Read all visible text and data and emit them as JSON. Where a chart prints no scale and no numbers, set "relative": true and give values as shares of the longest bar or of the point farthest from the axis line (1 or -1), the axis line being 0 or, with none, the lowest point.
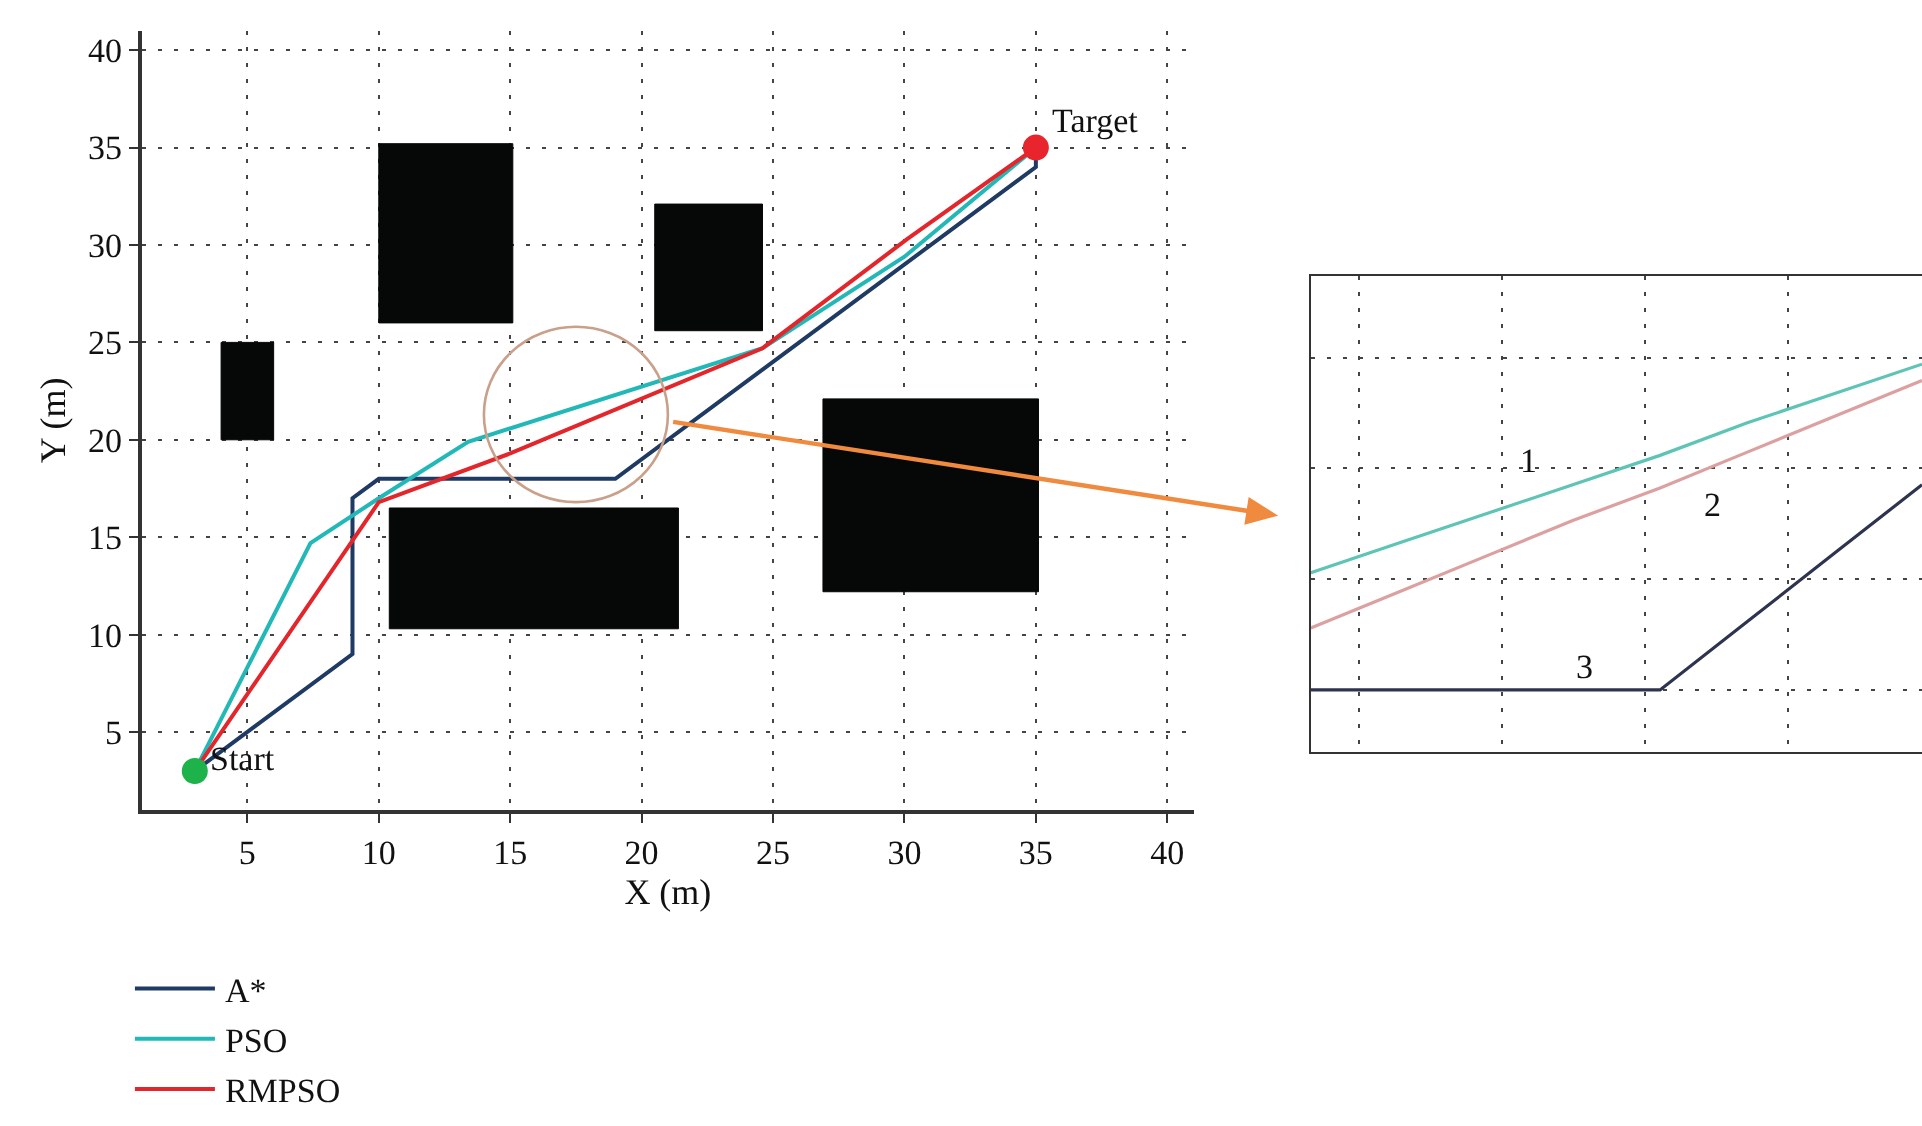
{
  "chart_data": [
    {
      "type": "line",
      "xlabel": "X (m)",
      "ylabel": "Y (m)",
      "xlim": [
        1,
        41
      ],
      "ylim": [
        1,
        41
      ],
      "xticks": [
        5,
        10,
        15,
        20,
        25,
        30,
        35,
        40
      ],
      "yticks": [
        5,
        10,
        15,
        20,
        25,
        30,
        35,
        40
      ],
      "grid": true,
      "legend": "bottom left",
      "line_style": "solid",
      "marker": "none",
      "series": [
        {
          "type": "area",
          "color": "#050807",
          "x": [
            4,
            6,
            6,
            4,
            4
          ],
          "values": [
            20,
            20,
            25,
            25,
            20
          ]
        },
        {
          "type": "area",
          "color": "#050807",
          "x": [
            10,
            15.1,
            15.1,
            10,
            10
          ],
          "values": [
            26,
            26,
            35.2,
            35.2,
            26
          ]
        },
        {
          "type": "area",
          "color": "#050807",
          "x": [
            20.5,
            24.6,
            24.6,
            20.5,
            20.5
          ],
          "values": [
            25.6,
            25.6,
            32.1,
            32.1,
            25.6
          ]
        },
        {
          "type": "area",
          "color": "#050807",
          "x": [
            10.4,
            21.4,
            21.4,
            10.4,
            10.4
          ],
          "values": [
            10.3,
            10.3,
            16.5,
            16.5,
            10.3
          ]
        },
        {
          "type": "area",
          "color": "#050807",
          "x": [
            26.9,
            35.1,
            35.1,
            26.9,
            26.9
          ],
          "values": [
            12.2,
            12.2,
            22.1,
            22.1,
            12.2
          ]
        },
        {
          "name": "A*",
          "color": "#1f3b63",
          "x": [
            3,
            9,
            9,
            10,
            19,
            35,
            35
          ],
          "values": [
            3,
            9,
            17,
            18,
            18,
            34,
            34.4
          ]
        },
        {
          "name": "PSO",
          "color": "#22b8b8",
          "x": [
            3,
            7.4,
            10,
            13.4,
            24.6,
            30,
            35
          ],
          "values": [
            3,
            14.7,
            17,
            19.9,
            24.7,
            29.4,
            35
          ]
        },
        {
          "name": "RMPSO",
          "color": "#e3262b",
          "x": [
            3,
            10,
            15,
            24.6,
            30.1,
            35
          ],
          "values": [
            3,
            16.8,
            19.3,
            24.7,
            30.3,
            35
          ]
        },
        {
          "type": "scatter",
          "marker": "circle",
          "color": "#1db24a",
          "x": [
            3
          ],
          "values": [
            3
          ]
        },
        {
          "type": "scatter",
          "marker": "circle",
          "color": "#e8242c",
          "x": [
            35
          ],
          "values": [
            35
          ]
        }
      ],
      "annotations": [
        {
          "text": "Start",
          "x": 3,
          "y": 3
        },
        {
          "text": "Target",
          "x": 35,
          "y": 35
        }
      ]
    },
    {
      "type": "line",
      "relative": true,
      "tick_labels": false,
      "grid": true,
      "line_style": "solid",
      "marker": "none",
      "categories": [
        null,
        null,
        null,
        null,
        null,
        null,
        null,
        null
      ],
      "series": [
        {
          "color": "#5ec4b6",
          "values": [
            0.36,
            0.45,
            0.54,
            0.63,
            0.72,
            0.82,
            0.91,
            1.0
          ]
        },
        {
          "color": "#dca0a0",
          "values": [
            0.19,
            0.3,
            0.41,
            0.52,
            0.62,
            0.73,
            0.84,
            0.95
          ]
        },
        {
          "color": "#2e3450",
          "values": [
            0,
            0,
            0,
            0,
            0,
            0.21,
            0.42,
            0.63
          ]
        }
      ],
      "annotations": [
        "1",
        "2",
        "3"
      ]
    }
  ]
}
